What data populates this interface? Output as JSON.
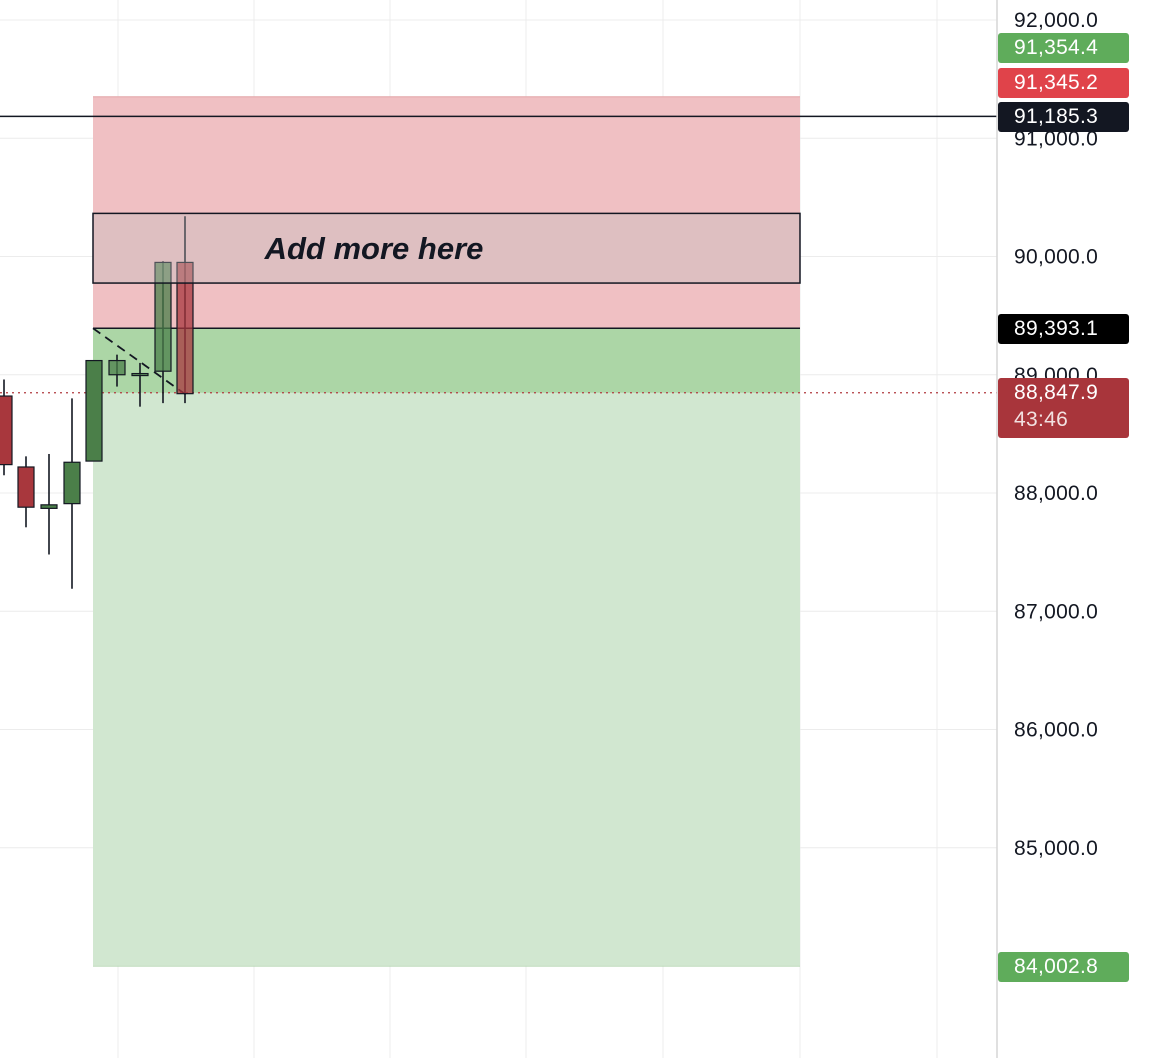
{
  "chart_data": {
    "type": "candlestick",
    "y_axis": {
      "ticks": [
        "92,000.0",
        "91,000.0",
        "90,000.0",
        "89,000.0",
        "88,000.0",
        "87,000.0",
        "86,000.0",
        "85,000.0"
      ],
      "tick_values": [
        92000,
        91000,
        90000,
        89000,
        88000,
        87000,
        86000,
        85000
      ],
      "range": [
        83800,
        92080
      ],
      "side": "right"
    },
    "candles": [
      {
        "open": 88820,
        "high": 88960,
        "low": 88150,
        "close": 88240
      },
      {
        "open": 88220,
        "high": 88310,
        "low": 87710,
        "close": 87880
      },
      {
        "open": 87870,
        "high": 88330,
        "low": 87480,
        "close": 87900
      },
      {
        "open": 87910,
        "high": 88800,
        "low": 87190,
        "close": 88260
      },
      {
        "open": 88270,
        "high": 89120,
        "low": 88270,
        "close": 89120
      },
      {
        "open": 89000,
        "high": 89170,
        "low": 88900,
        "close": 89120
      },
      {
        "open": 89010,
        "high": 89100,
        "low": 88730,
        "close": 89010
      },
      {
        "open": 89030,
        "high": 89960,
        "low": 88760,
        "close": 89950
      },
      {
        "open": 89950,
        "high": 90340,
        "low": 88760,
        "close": 88840
      }
    ],
    "position_tool": {
      "entry": 89393.1,
      "stop": 91185.3,
      "target": 84002.8,
      "direction": "short",
      "stop_color": "#f0c0c3",
      "target_color": "#d1e7d0",
      "near_zone_color": "#acd6a6"
    },
    "annotation": {
      "text": "Add more here",
      "price_top": 90280,
      "price_bottom": 89860
    },
    "horizontal_line": {
      "price": 91185.3,
      "color": "#131722"
    },
    "current_price_line": {
      "price": 88847.9,
      "color": "#b03a3f",
      "style": "dotted"
    },
    "price_labels": [
      {
        "price": 91354.4,
        "text": "91,354.4",
        "color": "#5fac5b"
      },
      {
        "price": 91345.2,
        "text": "91,345.2",
        "color": "#e0434a"
      },
      {
        "price": 91185.3,
        "text": "91,185.3",
        "color": "#131722"
      },
      {
        "price": 89393.1,
        "text": "89,393.1",
        "color": "#000000"
      },
      {
        "price": 88847.9,
        "text": "88,847.9",
        "countdown": "43:46",
        "color": "#a8353b"
      },
      {
        "price": 84002.8,
        "text": "84,002.8",
        "color": "#5fac5b"
      }
    ],
    "colors": {
      "up": "#4b7f49",
      "down": "#a8373d",
      "grid": "#ececec",
      "axis_border": "#d6d6d6"
    },
    "grid": true
  }
}
